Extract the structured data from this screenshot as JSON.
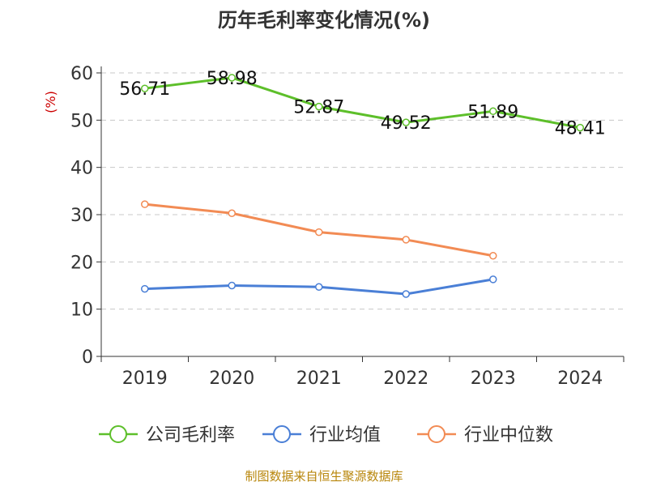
{
  "chart_data": {
    "type": "line",
    "title": "历年毛利率变化情况(%)",
    "ylabel": "(%)",
    "xlabel": "",
    "categories": [
      "2019",
      "2020",
      "2021",
      "2022",
      "2023",
      "2024"
    ],
    "ylim": [
      0,
      60
    ],
    "yticks": [
      0,
      10,
      20,
      30,
      40,
      50,
      60
    ],
    "grid": true,
    "legend_position": "bottom",
    "series": [
      {
        "name": "公司毛利率",
        "color": "#5dbf2a",
        "values": [
          56.71,
          58.98,
          52.87,
          49.52,
          51.89,
          48.41
        ],
        "labels": [
          "56.71",
          "58.98",
          "52.87",
          "49.52",
          "51.89",
          "48.41"
        ]
      },
      {
        "name": "行业均值",
        "color": "#4a7fd6",
        "values": [
          14.3,
          15.0,
          14.7,
          13.2,
          16.3,
          null
        ]
      },
      {
        "name": "行业中位数",
        "color": "#f28b54",
        "values": [
          32.2,
          30.3,
          26.3,
          24.7,
          21.3,
          null
        ]
      }
    ]
  },
  "footer": {
    "source": "制图数据来自恒生聚源数据库"
  }
}
